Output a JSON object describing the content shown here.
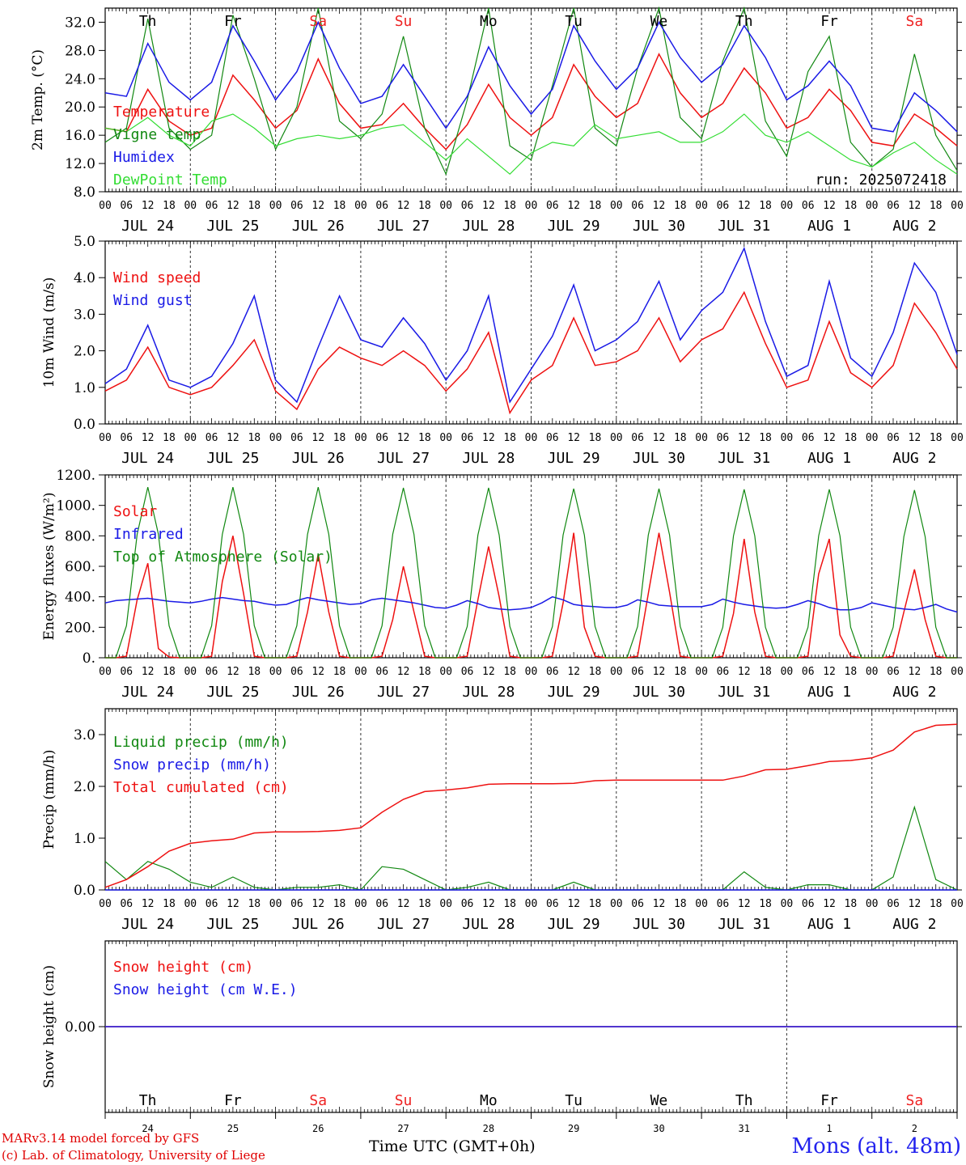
{
  "footer": {
    "model": "MARv3.14 model forced by GFS",
    "lab": "(c) Lab. of Climatology, University of Liege",
    "station": "Mons (alt. 48m)",
    "time_axis": "Time UTC (GMT+0h)"
  },
  "colors": {
    "red": "#ee1111",
    "green": "#118811",
    "blue": "#1a1ae6",
    "lightgreen": "#33dd33",
    "weekend": "#ee2222"
  },
  "days": [
    {
      "dow": "Th",
      "date": "JUL 24",
      "num": "24",
      "weekend": false
    },
    {
      "dow": "Fr",
      "date": "JUL 25",
      "num": "25",
      "weekend": false
    },
    {
      "dow": "Sa",
      "date": "JUL 26",
      "num": "26",
      "weekend": true
    },
    {
      "dow": "Su",
      "date": "JUL 27",
      "num": "27",
      "weekend": true
    },
    {
      "dow": "Mo",
      "date": "JUL 28",
      "num": "28",
      "weekend": false
    },
    {
      "dow": "Tu",
      "date": "JUL 29",
      "num": "29",
      "weekend": false
    },
    {
      "dow": "We",
      "date": "JUL 30",
      "num": "30",
      "weekend": false
    },
    {
      "dow": "Th",
      "date": "JUL 31",
      "num": "31",
      "weekend": false
    },
    {
      "dow": "Fr",
      "date": "AUG  1",
      "num": "1",
      "weekend": false
    },
    {
      "dow": "Sa",
      "date": "AUG  2",
      "num": "2",
      "weekend": true
    }
  ],
  "hour_ticks": [
    "00",
    "06",
    "12",
    "18"
  ],
  "chart_data": [
    {
      "type": "line",
      "ylabel": "2m Temp. (°C)",
      "ylim": [
        8,
        34
      ],
      "yticks": [
        "8.0",
        "12.0",
        "16.0",
        "20.0",
        "24.0",
        "28.0",
        "32.0"
      ],
      "ytick_values": [
        8,
        12,
        16,
        20,
        24,
        28,
        32
      ],
      "annotation": "run: 2025072418",
      "x_hours": [
        0,
        6,
        12,
        18,
        24,
        30,
        36,
        42,
        48,
        54,
        60,
        66,
        72,
        78,
        84,
        90,
        96,
        102,
        108,
        114,
        120,
        126,
        132,
        138,
        144,
        150,
        156,
        162,
        168,
        174,
        180,
        186,
        192,
        198,
        204,
        210,
        216,
        222,
        228,
        234,
        240
      ],
      "series": [
        {
          "name": "Temperature",
          "color": "red",
          "values": [
            17.0,
            16.5,
            22.5,
            18.0,
            16.0,
            17.0,
            24.5,
            21.0,
            17.0,
            19.5,
            26.8,
            20.5,
            17.0,
            17.5,
            20.5,
            17.0,
            14.0,
            17.5,
            23.2,
            18.5,
            16.0,
            18.5,
            26.0,
            21.5,
            18.5,
            20.5,
            27.5,
            22.0,
            18.5,
            20.5,
            25.5,
            22.0,
            17.0,
            18.5,
            22.5,
            19.5,
            15.0,
            14.5,
            19.0,
            17.0,
            14.5
          ]
        },
        {
          "name": "Vigne temp",
          "color": "green",
          "values": [
            15.0,
            17.0,
            32.5,
            17.0,
            14.0,
            16.0,
            33.0,
            24.0,
            14.0,
            20.0,
            38.0,
            18.0,
            15.5,
            19.0,
            30.0,
            17.0,
            10.5,
            21.0,
            34.0,
            14.5,
            12.5,
            23.0,
            36.0,
            17.0,
            14.5,
            25.5,
            39.0,
            18.5,
            15.5,
            26.5,
            34.0,
            18.0,
            13.0,
            25.0,
            30.0,
            15.0,
            11.5,
            14.0,
            27.5,
            16.0,
            11.0
          ]
        },
        {
          "name": "Humidex",
          "color": "blue",
          "values": [
            22.0,
            21.5,
            29.0,
            23.5,
            21.0,
            23.5,
            31.5,
            26.5,
            21.0,
            25.0,
            32.0,
            25.5,
            20.5,
            21.5,
            26.0,
            21.5,
            17.0,
            21.5,
            28.5,
            23.0,
            19.0,
            22.5,
            31.5,
            26.5,
            22.5,
            25.5,
            32.0,
            27.0,
            23.5,
            26.0,
            31.5,
            27.0,
            21.0,
            23.0,
            26.5,
            23.0,
            17.0,
            16.5,
            22.0,
            19.5,
            16.5
          ]
        },
        {
          "name": "DewPoint Temp",
          "color": "lightgreen",
          "values": [
            17.0,
            16.5,
            18.5,
            16.0,
            14.5,
            18.0,
            19.0,
            17.0,
            14.5,
            15.5,
            16.0,
            15.5,
            16.0,
            17.0,
            17.5,
            15.0,
            12.5,
            15.5,
            13.0,
            10.5,
            13.5,
            15.0,
            14.5,
            17.5,
            15.5,
            16.0,
            16.5,
            15.0,
            15.0,
            16.5,
            19.0,
            16.0,
            15.0,
            16.5,
            14.5,
            12.5,
            11.5,
            13.5,
            15.0,
            12.5,
            10.5
          ]
        }
      ]
    },
    {
      "type": "line",
      "ylabel": "10m Wind (m/s)",
      "ylim": [
        0,
        5
      ],
      "yticks": [
        "0.0",
        "1.0",
        "2.0",
        "3.0",
        "4.0",
        "5.0"
      ],
      "ytick_values": [
        0,
        1,
        2,
        3,
        4,
        5
      ],
      "x_hours": [
        0,
        6,
        12,
        18,
        24,
        30,
        36,
        42,
        48,
        54,
        60,
        66,
        72,
        78,
        84,
        90,
        96,
        102,
        108,
        114,
        120,
        126,
        132,
        138,
        144,
        150,
        156,
        162,
        168,
        174,
        180,
        186,
        192,
        198,
        204,
        210,
        216,
        222,
        228,
        234,
        240
      ],
      "series": [
        {
          "name": "Wind speed",
          "color": "red",
          "values": [
            0.9,
            1.2,
            2.1,
            1.0,
            0.8,
            1.0,
            1.6,
            2.3,
            0.9,
            0.4,
            1.5,
            2.1,
            1.8,
            1.6,
            2.0,
            1.6,
            0.9,
            1.5,
            2.5,
            0.3,
            1.2,
            1.6,
            2.9,
            1.6,
            1.7,
            2.0,
            2.9,
            1.7,
            2.3,
            2.6,
            3.6,
            2.2,
            1.0,
            1.2,
            2.8,
            1.4,
            1.0,
            1.6,
            3.3,
            2.5,
            1.5
          ]
        },
        {
          "name": "Wind gust",
          "color": "blue",
          "values": [
            1.1,
            1.5,
            2.7,
            1.2,
            1.0,
            1.3,
            2.2,
            3.5,
            1.2,
            0.6,
            2.1,
            3.5,
            2.3,
            2.1,
            2.9,
            2.2,
            1.2,
            2.0,
            3.5,
            0.6,
            1.5,
            2.4,
            3.8,
            2.0,
            2.3,
            2.8,
            3.9,
            2.3,
            3.1,
            3.6,
            4.8,
            2.8,
            1.3,
            1.6,
            3.9,
            1.8,
            1.3,
            2.5,
            4.4,
            3.6,
            1.9
          ]
        }
      ]
    },
    {
      "type": "line",
      "ylabel": "Energy fluxes (W/m²)",
      "ylim": [
        0,
        1200
      ],
      "yticks": [
        "0.",
        "200.",
        "400.",
        "600.",
        "800.",
        "1000.",
        "1200."
      ],
      "ytick_values": [
        0,
        200,
        400,
        600,
        800,
        1000,
        1200
      ],
      "x_hours": [
        0,
        3,
        6,
        9,
        12,
        15,
        18,
        21,
        24,
        27,
        30,
        33,
        36,
        39,
        42,
        45,
        48,
        51,
        54,
        57,
        60,
        63,
        66,
        69,
        72,
        75,
        78,
        81,
        84,
        87,
        90,
        93,
        96,
        99,
        102,
        105,
        108,
        111,
        114,
        117,
        120,
        123,
        126,
        129,
        132,
        135,
        138,
        141,
        144,
        147,
        150,
        153,
        156,
        159,
        162,
        165,
        168,
        171,
        174,
        177,
        180,
        183,
        186,
        189,
        192,
        195,
        198,
        201,
        204,
        207,
        210,
        213,
        216,
        219,
        222,
        225,
        228,
        231,
        234,
        237,
        240
      ],
      "series": [
        {
          "name": "Solar",
          "color": "red",
          "values": [
            0,
            0,
            10,
            380,
            620,
            60,
            5,
            0,
            0,
            0,
            10,
            500,
            800,
            420,
            10,
            0,
            0,
            0,
            10,
            300,
            680,
            300,
            10,
            0,
            0,
            0,
            10,
            250,
            600,
            300,
            10,
            0,
            0,
            0,
            10,
            380,
            730,
            400,
            10,
            0,
            0,
            0,
            10,
            360,
            820,
            200,
            10,
            0,
            0,
            0,
            10,
            420,
            820,
            430,
            10,
            0,
            0,
            0,
            10,
            290,
            780,
            300,
            10,
            0,
            0,
            0,
            10,
            550,
            780,
            150,
            10,
            0,
            0,
            0,
            10,
            300,
            580,
            250,
            10,
            0,
            0
          ]
        },
        {
          "name": "Infrared",
          "color": "blue",
          "values": [
            360,
            375,
            380,
            385,
            390,
            380,
            370,
            365,
            360,
            370,
            385,
            395,
            385,
            375,
            370,
            355,
            345,
            350,
            375,
            395,
            380,
            370,
            360,
            350,
            355,
            380,
            390,
            380,
            370,
            360,
            345,
            330,
            325,
            345,
            375,
            355,
            330,
            320,
            315,
            320,
            330,
            360,
            400,
            380,
            350,
            340,
            335,
            330,
            330,
            345,
            380,
            365,
            345,
            340,
            335,
            335,
            335,
            350,
            385,
            365,
            350,
            340,
            330,
            325,
            330,
            350,
            375,
            355,
            330,
            315,
            315,
            330,
            360,
            345,
            330,
            320,
            315,
            330,
            350,
            320,
            300
          ]
        },
        {
          "name": "Top of Atmosphere (Solar)",
          "color": "green",
          "values": [
            0,
            0,
            210,
            810,
            1120,
            810,
            210,
            0,
            0,
            0,
            210,
            810,
            1120,
            810,
            210,
            0,
            0,
            0,
            210,
            810,
            1120,
            810,
            210,
            0,
            0,
            0,
            210,
            810,
            1115,
            810,
            210,
            0,
            0,
            0,
            205,
            805,
            1115,
            805,
            205,
            0,
            0,
            0,
            205,
            805,
            1110,
            805,
            205,
            0,
            0,
            0,
            205,
            805,
            1110,
            805,
            205,
            0,
            0,
            0,
            200,
            800,
            1105,
            800,
            200,
            0,
            0,
            0,
            200,
            800,
            1105,
            800,
            200,
            0,
            0,
            0,
            200,
            795,
            1100,
            795,
            200,
            0,
            0
          ]
        }
      ]
    },
    {
      "type": "line",
      "ylabel": "Precip (mm/h)",
      "ylim": [
        0,
        3.5
      ],
      "yticks": [
        "0.0",
        "1.0",
        "2.0",
        "3.0"
      ],
      "ytick_values": [
        0,
        1,
        2,
        3
      ],
      "x_hours": [
        0,
        6,
        12,
        18,
        24,
        30,
        36,
        42,
        48,
        54,
        60,
        66,
        72,
        78,
        84,
        90,
        96,
        102,
        108,
        114,
        120,
        126,
        132,
        138,
        144,
        150,
        156,
        162,
        168,
        174,
        180,
        186,
        192,
        198,
        204,
        210,
        216,
        222,
        228,
        234,
        240
      ],
      "series": [
        {
          "name": "Liquid precip (mm/h)",
          "color": "green",
          "values": [
            0.55,
            0.2,
            0.55,
            0.4,
            0.15,
            0.05,
            0.25,
            0.05,
            0.0,
            0.05,
            0.05,
            0.1,
            0.0,
            0.45,
            0.4,
            0.2,
            0.0,
            0.05,
            0.15,
            0.0,
            0.0,
            0.0,
            0.15,
            0.0,
            0.0,
            0.0,
            0.0,
            0.0,
            0.0,
            0.0,
            0.35,
            0.05,
            0.0,
            0.1,
            0.1,
            0.0,
            0.0,
            0.25,
            1.6,
            0.2,
            0.0
          ]
        },
        {
          "name": "Snow precip (mm/h)",
          "color": "blue",
          "values": [
            0,
            0,
            0,
            0,
            0,
            0,
            0,
            0,
            0,
            0,
            0,
            0,
            0,
            0,
            0,
            0,
            0,
            0,
            0,
            0,
            0,
            0,
            0,
            0,
            0,
            0,
            0,
            0,
            0,
            0,
            0,
            0,
            0,
            0,
            0,
            0,
            0,
            0,
            0,
            0,
            0
          ]
        },
        {
          "name": "Total cumulated (cm)",
          "color": "red",
          "values": [
            0.05,
            0.2,
            0.45,
            0.75,
            0.9,
            0.95,
            0.98,
            1.1,
            1.12,
            1.12,
            1.13,
            1.15,
            1.2,
            1.5,
            1.75,
            1.9,
            1.93,
            1.97,
            2.04,
            2.05,
            2.05,
            2.05,
            2.06,
            2.11,
            2.12,
            2.12,
            2.12,
            2.12,
            2.12,
            2.12,
            2.2,
            2.32,
            2.33,
            2.4,
            2.48,
            2.5,
            2.55,
            2.7,
            3.05,
            3.18,
            3.2
          ]
        }
      ]
    },
    {
      "type": "line",
      "ylabel": "Snow height (cm)",
      "ylim": [
        -1,
        1
      ],
      "yticks": [
        "0.00"
      ],
      "ytick_values": [
        0
      ],
      "x_hours": [
        0,
        240
      ],
      "series": [
        {
          "name": "Snow height (cm)",
          "color": "red",
          "values": [
            0,
            0
          ]
        },
        {
          "name": "Snow height (cm W.E.)",
          "color": "blue",
          "values": [
            0,
            0
          ]
        }
      ]
    }
  ]
}
